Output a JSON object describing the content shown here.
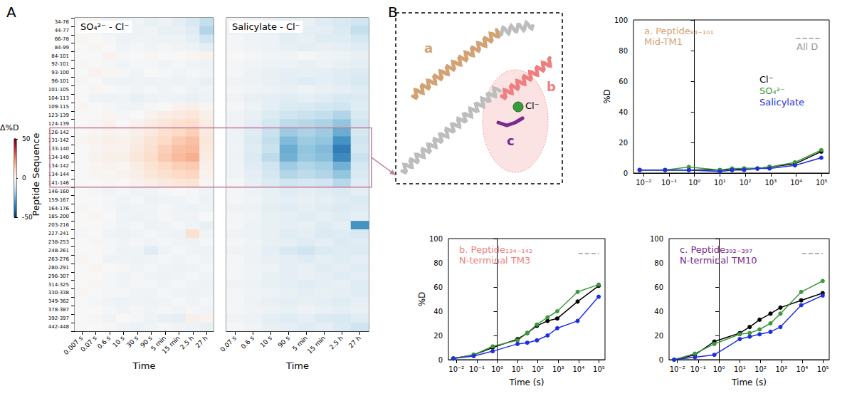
{
  "diagram": {
    "helix_labels": [
      "a",
      "b",
      "c"
    ],
    "ion": "Cl⁻"
  },
  "chart_data": [
    {
      "type": "heatmap",
      "panel": "A",
      "title": "SO₄²⁻ - Cl⁻",
      "x": [
        "0.007 s",
        "0.07 s",
        "0.6 s",
        "10 s",
        "30 s",
        "90 s",
        "5 min",
        "15 min",
        "2.5 h",
        "27 h"
      ],
      "y": [
        "34-76",
        "44-77",
        "66-78",
        "84-99",
        "84-101",
        "92-101",
        "93-100",
        "96-101",
        "101-105",
        "104-113",
        "109-115",
        "123-139",
        "124-139",
        "126-142",
        "131-142",
        "133-140",
        "134-140",
        "134-142",
        "134-144",
        "141-146",
        "146-160",
        "159-167",
        "164-176",
        "185-200",
        "203-216",
        "227-241",
        "238-253",
        "248-261",
        "263-276",
        "280-291",
        "296-307",
        "314-325",
        "330-338",
        "349-362",
        "378-387",
        "392-397",
        "442-448"
      ],
      "xlabel": "Time",
      "ylabel": "Peptide Sequence",
      "cells": [
        [
          0,
          1,
          -2,
          -3,
          -2,
          -4,
          -3,
          -5,
          -8,
          -12
        ],
        [
          0,
          -1,
          -2,
          -2,
          -3,
          -2,
          -4,
          -4,
          -6,
          -15
        ],
        [
          1,
          0,
          -1,
          -3,
          -2,
          -2,
          -3,
          -3,
          -5,
          -10
        ],
        [
          0,
          1,
          0,
          -2,
          -1,
          -2,
          -1,
          -2,
          -3,
          -5
        ],
        [
          0,
          0,
          2,
          -1,
          0,
          1,
          0,
          0,
          1,
          2
        ],
        [
          1,
          0,
          -1,
          -2,
          -1,
          -1,
          -2,
          -1,
          -2,
          -3
        ],
        [
          0,
          2,
          1,
          -1,
          -2,
          0,
          -1,
          -2,
          -1,
          -2
        ],
        [
          -1,
          0,
          -2,
          -3,
          -2,
          -3,
          -2,
          -3,
          -2,
          -4
        ],
        [
          0,
          1,
          0,
          -1,
          -2,
          -1,
          -2,
          -1,
          -3,
          -2
        ],
        [
          0,
          -2,
          -3,
          -2,
          -4,
          -3,
          -2,
          -3,
          -4,
          -3
        ],
        [
          1,
          0,
          -1,
          -2,
          -2,
          -1,
          0,
          2,
          3,
          1
        ],
        [
          0,
          0,
          1,
          -1,
          0,
          2,
          4,
          5,
          6,
          3
        ],
        [
          0,
          1,
          2,
          0,
          2,
          4,
          6,
          8,
          9,
          4
        ],
        [
          0,
          1,
          2,
          1,
          3,
          5,
          8,
          10,
          12,
          5
        ],
        [
          1,
          2,
          3,
          2,
          4,
          7,
          10,
          13,
          15,
          6
        ],
        [
          0,
          1,
          2,
          2,
          5,
          8,
          12,
          15,
          16,
          5
        ],
        [
          0,
          2,
          3,
          3,
          6,
          9,
          13,
          16,
          18,
          4
        ],
        [
          0,
          1,
          2,
          1,
          4,
          7,
          10,
          12,
          13,
          3
        ],
        [
          0,
          1,
          1,
          2,
          3,
          6,
          8,
          10,
          11,
          2
        ],
        [
          0,
          0,
          1,
          0,
          2,
          3,
          5,
          6,
          7,
          1
        ],
        [
          0,
          -1,
          -2,
          -1,
          -3,
          -2,
          -1,
          0,
          -1,
          -2
        ],
        [
          0,
          0,
          -1,
          -2,
          -1,
          -3,
          -2,
          -2,
          -1,
          -3
        ],
        [
          1,
          0,
          -1,
          -3,
          -2,
          -2,
          -1,
          -2,
          -3,
          -2
        ],
        [
          0,
          1,
          0,
          -2,
          -3,
          -2,
          -1,
          -2,
          -2,
          0
        ],
        [
          0,
          0,
          -1,
          -2,
          -1,
          -3,
          -2,
          -1,
          -2,
          -4
        ],
        [
          -1,
          0,
          -2,
          -3,
          -2,
          -1,
          -2,
          -3,
          8,
          -2
        ],
        [
          0,
          1,
          -1,
          -2,
          -1,
          -2,
          -1,
          -2,
          -3,
          -1
        ],
        [
          0,
          0,
          -1,
          -3,
          -2,
          -6,
          -2,
          -1,
          -2,
          -3
        ],
        [
          1,
          0,
          -2,
          -2,
          -3,
          -2,
          -1,
          -2,
          -1,
          -2
        ],
        [
          0,
          1,
          0,
          -1,
          -2,
          -1,
          -2,
          -3,
          -2,
          -1
        ],
        [
          0,
          0,
          -1,
          -2,
          -1,
          -2,
          -3,
          -2,
          -1,
          -2
        ],
        [
          0,
          1,
          -1,
          -2,
          -1,
          -1,
          -2,
          -1,
          -2,
          -3
        ],
        [
          1,
          0,
          -1,
          -1,
          -2,
          -2,
          -1,
          -2,
          -3,
          -2
        ],
        [
          0,
          -1,
          -2,
          -3,
          -2,
          -3,
          -2,
          -1,
          -2,
          -1
        ],
        [
          0,
          0,
          -1,
          -2,
          -1,
          -2,
          -1,
          -2,
          -1,
          -2
        ],
        [
          0,
          1,
          -2,
          0,
          -1,
          -3,
          -4,
          -5,
          3,
          2
        ],
        [
          0,
          0,
          -1,
          -2,
          -3,
          -2,
          -1,
          -2,
          -3,
          -4
        ]
      ],
      "colorbar": {
        "label": "Δ%D",
        "range": [
          -50,
          50
        ],
        "ticks": [
          -50,
          0,
          50
        ]
      }
    },
    {
      "type": "heatmap",
      "title": "Salicylate - Cl⁻",
      "x": [
        "0.07 s",
        "0.6 s",
        "10 s",
        "90 s",
        "5 min",
        "15 min",
        "2.5 h",
        "27 h"
      ],
      "y": [
        "34-76",
        "44-77",
        "66-78",
        "84-99",
        "84-101",
        "92-101",
        "93-100",
        "96-101",
        "101-105",
        "104-113",
        "109-115",
        "123-139",
        "124-139",
        "126-142",
        "131-142",
        "133-140",
        "134-140",
        "134-142",
        "134-144",
        "141-146",
        "146-160",
        "159-167",
        "164-176",
        "185-200",
        "203-216",
        "227-241",
        "238-253",
        "248-261",
        "263-276",
        "280-291",
        "296-307",
        "314-325",
        "330-338",
        "349-362",
        "378-387",
        "392-397",
        "442-448"
      ],
      "xlabel": "Time",
      "tick_labels": "x",
      "cells": [
        [
          -1,
          -2,
          -4,
          -5,
          -4,
          -6,
          -8,
          -10
        ],
        [
          -2,
          -3,
          -4,
          -6,
          -5,
          -5,
          -7,
          -12
        ],
        [
          -1,
          -2,
          -3,
          -5,
          -4,
          -6,
          -6,
          -9
        ],
        [
          -1,
          -2,
          -3,
          -4,
          -5,
          -4,
          -5,
          -6
        ],
        [
          0,
          -1,
          -2,
          -2,
          -1,
          -2,
          -3,
          -4
        ],
        [
          -1,
          -2,
          -3,
          -3,
          -4,
          -3,
          -4,
          -5
        ],
        [
          -1,
          -3,
          -4,
          -5,
          -4,
          -5,
          -6,
          -7
        ],
        [
          -2,
          -3,
          -4,
          -5,
          -6,
          -5,
          -6,
          -8
        ],
        [
          -1,
          -2,
          -3,
          -4,
          -3,
          -4,
          -5,
          -6
        ],
        [
          -2,
          -4,
          -5,
          -6,
          -5,
          -6,
          -8,
          -7
        ],
        [
          -1,
          -3,
          -5,
          -7,
          -8,
          -9,
          -10,
          -6
        ],
        [
          -2,
          -4,
          -7,
          -10,
          -11,
          -12,
          -15,
          -8
        ],
        [
          -2,
          -5,
          -9,
          -13,
          -14,
          -16,
          -20,
          -10
        ],
        [
          -3,
          -6,
          -11,
          -18,
          -16,
          -18,
          -25,
          -9
        ],
        [
          -3,
          -7,
          -12,
          -22,
          -18,
          -20,
          -30,
          -10
        ],
        [
          -2,
          -6,
          -11,
          -25,
          -20,
          -22,
          -35,
          -9
        ],
        [
          -3,
          -7,
          -13,
          -24,
          -19,
          -21,
          -32,
          -11
        ],
        [
          -2,
          -6,
          -10,
          -18,
          -15,
          -17,
          -24,
          -9
        ],
        [
          -2,
          -5,
          -9,
          -15,
          -13,
          -15,
          -20,
          -8
        ],
        [
          -1,
          -4,
          -7,
          -10,
          -9,
          -10,
          -14,
          -6
        ],
        [
          -1,
          -3,
          -4,
          -6,
          -5,
          -6,
          -7,
          -5
        ],
        [
          -1,
          -2,
          -4,
          -5,
          -4,
          -5,
          -6,
          -7
        ],
        [
          -2,
          -3,
          -5,
          -6,
          -5,
          -6,
          -7,
          -6
        ],
        [
          -1,
          -2,
          -4,
          -5,
          -6,
          -5,
          -6,
          -5
        ],
        [
          -1,
          -3,
          -4,
          -5,
          -4,
          -6,
          -5,
          -30
        ],
        [
          -2,
          -3,
          -4,
          -6,
          -5,
          -7,
          -6,
          -8
        ],
        [
          -1,
          -2,
          -4,
          -5,
          -6,
          -5,
          -7,
          -6
        ],
        [
          -2,
          -3,
          -5,
          -8,
          -10,
          -7,
          -6,
          -7
        ],
        [
          -1,
          -3,
          -4,
          -5,
          -6,
          -5,
          -6,
          -5
        ],
        [
          -1,
          -2,
          -3,
          -5,
          -4,
          -6,
          -5,
          -6
        ],
        [
          -1,
          -2,
          -4,
          -5,
          -4,
          -5,
          -6,
          -5
        ],
        [
          -2,
          -3,
          -4,
          -5,
          -6,
          -5,
          -4,
          -6
        ],
        [
          -1,
          -2,
          -3,
          -4,
          -5,
          -4,
          -5,
          -6
        ],
        [
          -1,
          -3,
          -4,
          -5,
          -4,
          -5,
          -6,
          -5
        ],
        [
          -1,
          -2,
          -3,
          -4,
          -3,
          -4,
          -5,
          -4
        ],
        [
          -2,
          -3,
          -5,
          -6,
          -5,
          -7,
          -8,
          -6
        ],
        [
          -1,
          -2,
          -4,
          -5,
          -6,
          -5,
          -7,
          -10
        ]
      ]
    },
    {
      "type": "line",
      "panel": "B",
      "title": "a. Peptide₈₄₋₁₀₁",
      "subtitle": "Mid-TM1",
      "color": "#d2a274",
      "ylabel": "%D",
      "log": "x",
      "grid": false,
      "legend": "right",
      "marker": "circle",
      "xlim": [
        0.004,
        200000
      ],
      "xticks": [
        {
          "value": 0.01,
          "label": "10⁻²"
        },
        {
          "value": 0.1,
          "label": "10⁻¹"
        },
        {
          "value": 1,
          "label": "10⁰"
        },
        {
          "value": 10,
          "label": "10¹"
        },
        {
          "value": 100,
          "label": "10²"
        },
        {
          "value": 1000,
          "label": "10³"
        },
        {
          "value": 10000,
          "label": "10⁴"
        },
        {
          "value": 100000,
          "label": "10⁵"
        }
      ],
      "ylim": [
        0,
        100
      ],
      "yticks": [
        0,
        20,
        40,
        60,
        80,
        100
      ],
      "x": [
        0.007,
        0.07,
        0.6,
        10,
        30,
        90,
        300,
        900,
        9000,
        97200
      ],
      "series": [
        {
          "name": "Cl⁻",
          "color": "#000000",
          "values": [
            2,
            2,
            2,
            2,
            2,
            3,
            3,
            4,
            6,
            14
          ]
        },
        {
          "name": "SO₄²⁻",
          "color": "#3c9a3c",
          "values": [
            2,
            2,
            4,
            2,
            3,
            3,
            3,
            4,
            7,
            15
          ]
        },
        {
          "name": "Salicylate",
          "color": "#1f2fe0",
          "values": [
            2,
            2,
            2,
            1,
            2,
            2,
            3,
            3,
            5,
            10
          ]
        }
      ],
      "reference": {
        "label": "All D",
        "y": 88,
        "x": [
          10000,
          100000
        ],
        "color": "#999999",
        "line_style": "dashed"
      }
    },
    {
      "type": "line",
      "title": "b. Peptide₁₃₄₋₁₄₂",
      "subtitle": "N-terminal TM3",
      "color": "#ef7f7f",
      "ylabel": "%D",
      "log": "x",
      "grid": false,
      "marker": "circle",
      "xlim": [
        0.004,
        200000
      ],
      "xticks": [
        {
          "value": 0.01,
          "label": "10⁻²"
        },
        {
          "value": 0.1,
          "label": "10⁻¹"
        },
        {
          "value": 1,
          "label": "10⁰"
        },
        {
          "value": 10,
          "label": "10¹"
        },
        {
          "value": 100,
          "label": "10²"
        },
        {
          "value": 1000,
          "label": "10³"
        },
        {
          "value": 10000,
          "label": "10⁴"
        },
        {
          "value": 100000,
          "label": "10⁵"
        }
      ],
      "xlabel": "Time (s)",
      "ylim": [
        0,
        100
      ],
      "yticks": [
        0,
        20,
        40,
        60,
        80,
        100
      ],
      "x": [
        0.007,
        0.07,
        0.6,
        10,
        30,
        90,
        300,
        900,
        9000,
        97200
      ],
      "series": [
        {
          "name": "Cl⁻",
          "color": "#000000",
          "values": [
            1,
            4,
            10,
            17,
            22,
            28,
            32,
            34,
            48,
            61
          ]
        },
        {
          "name": "SO₄²⁻",
          "color": "#3c9a3c",
          "values": [
            1,
            4,
            11,
            16,
            22,
            29,
            35,
            40,
            56,
            62
          ]
        },
        {
          "name": "Salicylate",
          "color": "#1f2fe0",
          "values": [
            1,
            3,
            7,
            13,
            14,
            16,
            20,
            26,
            32,
            52
          ]
        }
      ],
      "reference": {
        "y": 88,
        "x": [
          10000,
          100000
        ],
        "color": "#999999",
        "line_style": "dashed"
      }
    },
    {
      "type": "line",
      "title": "c. Peptide₃₉₂₋₃₉₇",
      "subtitle": "N-terminal TM10",
      "color": "#7a2a8c",
      "log": "x",
      "grid": false,
      "marker": "circle",
      "xlim": [
        0.004,
        200000
      ],
      "xticks": [
        {
          "value": 0.01,
          "label": "10⁻²"
        },
        {
          "value": 0.1,
          "label": "10⁻¹"
        },
        {
          "value": 1,
          "label": "10⁰"
        },
        {
          "value": 10,
          "label": "10¹"
        },
        {
          "value": 100,
          "label": "10²"
        },
        {
          "value": 1000,
          "label": "10³"
        },
        {
          "value": 10000,
          "label": "10⁴"
        },
        {
          "value": 100000,
          "label": "10⁵"
        }
      ],
      "xlabel": "Time (s)",
      "ylim": [
        0,
        100
      ],
      "yticks": [
        0,
        20,
        40,
        60,
        80,
        100
      ],
      "x": [
        0.007,
        0.07,
        0.6,
        10,
        30,
        90,
        300,
        900,
        9000,
        97200
      ],
      "series": [
        {
          "name": "Cl⁻",
          "color": "#000000",
          "values": [
            0,
            4,
            15,
            22,
            27,
            33,
            38,
            43,
            49,
            55
          ]
        },
        {
          "name": "SO₄²⁻",
          "color": "#3c9a3c",
          "values": [
            0,
            5,
            13,
            21,
            22,
            25,
            30,
            38,
            56,
            65
          ]
        },
        {
          "name": "Salicylate",
          "color": "#1f2fe0",
          "values": [
            0,
            2,
            4,
            17,
            19,
            21,
            23,
            27,
            45,
            53
          ]
        }
      ],
      "reference": {
        "y": 88,
        "x": [
          10000,
          100000
        ],
        "color": "#999999",
        "line_style": "dashed"
      }
    }
  ]
}
